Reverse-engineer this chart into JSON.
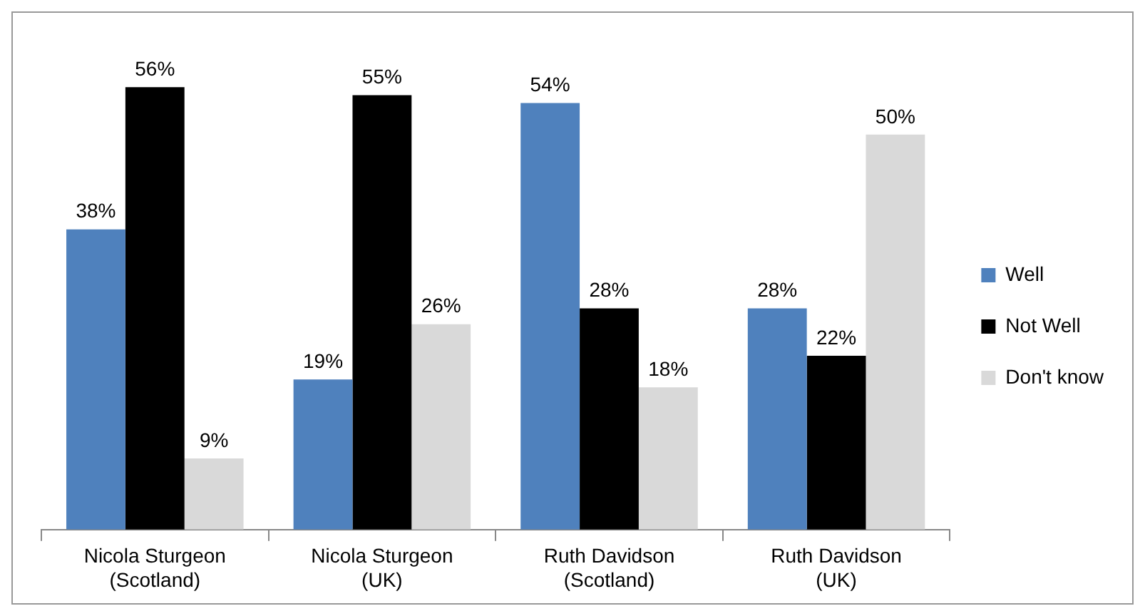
{
  "chart_data": {
    "type": "bar",
    "categories": [
      "Nicola Sturgeon\n(Scotland)",
      "Nicola Sturgeon\n(UK)",
      "Ruth Davidson\n(Scotland)",
      "Ruth Davidson\n(UK)"
    ],
    "series": [
      {
        "name": "Well",
        "color": "#4f81bd",
        "values": [
          38,
          19,
          54,
          28
        ],
        "value_labels": [
          "38%",
          "19%",
          "54%",
          "28%"
        ]
      },
      {
        "name": "Not Well",
        "color": "#000000",
        "values": [
          56,
          55,
          28,
          22
        ],
        "value_labels": [
          "56%",
          "55%",
          "28%",
          "22%"
        ]
      },
      {
        "name": "Don't know",
        "color": "#d9d9d9",
        "values": [
          9,
          26,
          18,
          50
        ],
        "value_labels": [
          "9%",
          "26%",
          "18%",
          "50%"
        ]
      }
    ],
    "legend": "right"
  }
}
